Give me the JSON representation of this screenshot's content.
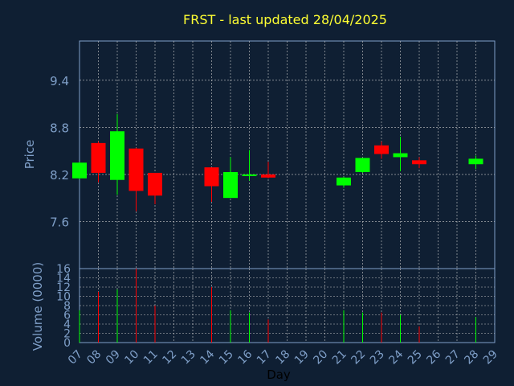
{
  "chart_data": {
    "type": "candlestick",
    "title": "FRST - last updated 28/04/2025",
    "ylabel": "Price",
    "volume_ylabel": "Volume (0000)",
    "xlabel": "Day",
    "ylim": [
      7.0,
      9.9
    ],
    "volume_ylim": [
      0,
      16
    ],
    "y_ticks": [
      "7.6",
      "8.2",
      "8.8",
      "9.4"
    ],
    "volume_ticks": [
      "0",
      "2",
      "4",
      "6",
      "8",
      "10",
      "12",
      "14",
      "16"
    ],
    "x_ticks": [
      "07",
      "08",
      "09",
      "10",
      "11",
      "12",
      "13",
      "14",
      "15",
      "16",
      "17",
      "18",
      "19",
      "20",
      "21",
      "22",
      "23",
      "24",
      "25",
      "26",
      "27",
      "28",
      "29"
    ],
    "grid": true,
    "colors": {
      "up": "#00ff00",
      "down": "#ff0000",
      "background": "#0f1f33",
      "title": "#ffff33",
      "axis": "#7f9fc8",
      "grid": "#c8c8c8"
    },
    "candles": [
      {
        "day": "07",
        "open": 8.15,
        "high": 8.36,
        "low": 8.14,
        "close": 8.35,
        "volume": 7
      },
      {
        "day": "08",
        "open": 8.6,
        "high": 8.62,
        "low": 8.1,
        "close": 8.22,
        "volume": 11
      },
      {
        "day": "09",
        "open": 8.13,
        "high": 8.97,
        "low": 7.94,
        "close": 8.75,
        "volume": 11.5
      },
      {
        "day": "10",
        "open": 8.53,
        "high": 8.54,
        "low": 7.73,
        "close": 7.99,
        "volume": 16
      },
      {
        "day": "11",
        "open": 8.22,
        "high": 8.22,
        "low": 7.82,
        "close": 7.93,
        "volume": 8
      },
      {
        "day": "14",
        "open": 8.29,
        "high": 8.29,
        "low": 7.85,
        "close": 8.05,
        "volume": 12
      },
      {
        "day": "15",
        "open": 7.9,
        "high": 8.42,
        "low": 7.9,
        "close": 8.23,
        "volume": 7
      },
      {
        "day": "16",
        "open": 8.18,
        "high": 8.51,
        "low": 8.12,
        "close": 8.2,
        "volume": 6.5
      },
      {
        "day": "17",
        "open": 8.2,
        "high": 8.36,
        "low": 8.15,
        "close": 8.16,
        "volume": 5
      },
      {
        "day": "21",
        "open": 8.06,
        "high": 8.17,
        "low": 8.03,
        "close": 8.16,
        "volume": 7
      },
      {
        "day": "22",
        "open": 8.23,
        "high": 8.41,
        "low": 8.22,
        "close": 8.41,
        "volume": 6.5
      },
      {
        "day": "23",
        "open": 8.57,
        "high": 8.62,
        "low": 8.4,
        "close": 8.46,
        "volume": 6.5
      },
      {
        "day": "24",
        "open": 8.42,
        "high": 8.68,
        "low": 8.24,
        "close": 8.47,
        "volume": 6
      },
      {
        "day": "25",
        "open": 8.38,
        "high": 8.42,
        "low": 8.28,
        "close": 8.33,
        "volume": 3.5
      },
      {
        "day": "28",
        "open": 8.33,
        "high": 8.44,
        "low": 8.27,
        "close": 8.4,
        "volume": 5.5
      }
    ]
  }
}
